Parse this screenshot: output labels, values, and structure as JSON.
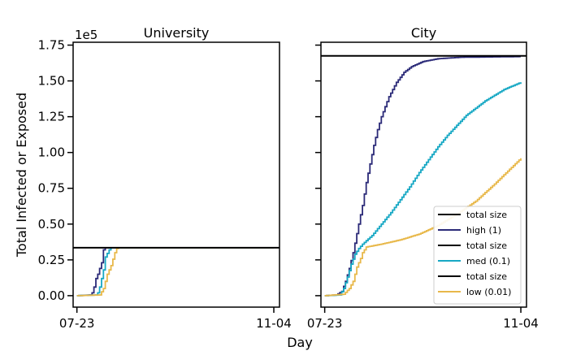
{
  "chart_data": {
    "type": "line",
    "ylabel": "Total Infected or Exposed",
    "xlabel": "Day",
    "y_scale_label": "1e5",
    "ylim": [
      -0.08,
      1.77
    ],
    "x_range_days": [
      -2,
      107
    ],
    "yticks": [
      {
        "value": 0.0,
        "label": "0.00"
      },
      {
        "value": 0.25,
        "label": "0.25"
      },
      {
        "value": 0.5,
        "label": "0.50"
      },
      {
        "value": 0.75,
        "label": "0.75"
      },
      {
        "value": 1.0,
        "label": "1.00"
      },
      {
        "value": 1.25,
        "label": "1.25"
      },
      {
        "value": 1.5,
        "label": "1.50"
      },
      {
        "value": 1.75,
        "label": "1.75"
      }
    ],
    "xticks": [
      {
        "day": 0,
        "label": "07-23"
      },
      {
        "day": 104,
        "label": "11-04"
      }
    ],
    "colors": {
      "high": "#2b2a78",
      "med": "#17a8c4",
      "low": "#e8b84a",
      "total": "#000000"
    },
    "legend": {
      "placement": "lower-right",
      "entries": [
        {
          "label": "total size",
          "color": "#000000"
        },
        {
          "label": "high (1)",
          "color": "#2b2a78"
        },
        {
          "label": "total size",
          "color": "#000000"
        },
        {
          "label": "med (0.1)",
          "color": "#17a8c4"
        },
        {
          "label": "total size",
          "color": "#000000"
        },
        {
          "label": "low (0.01)",
          "color": "#e8b84a"
        }
      ]
    },
    "panels": [
      {
        "title": "University",
        "total_size": 0.335,
        "series": [
          {
            "key": "high",
            "points": [
              [
                0,
                0
              ],
              [
                7,
                0.005
              ],
              [
                8,
                0.02
              ],
              [
                9,
                0.06
              ],
              [
                10,
                0.12
              ],
              [
                11,
                0.15
              ],
              [
                13,
                0.23
              ],
              [
                14,
                0.32
              ],
              [
                15,
                0.335
              ],
              [
                104,
                0.335
              ]
            ]
          },
          {
            "key": "med",
            "points": [
              [
                0,
                0
              ],
              [
                10,
                0.005
              ],
              [
                11,
                0.02
              ],
              [
                12,
                0.06
              ],
              [
                14,
                0.18
              ],
              [
                15,
                0.27
              ],
              [
                17,
                0.32
              ],
              [
                18,
                0.335
              ],
              [
                104,
                0.335
              ]
            ]
          },
          {
            "key": "low",
            "points": [
              [
                0,
                0
              ],
              [
                12,
                0.005
              ],
              [
                14,
                0.05
              ],
              [
                16,
                0.15
              ],
              [
                18,
                0.21
              ],
              [
                20,
                0.3
              ],
              [
                21,
                0.33
              ],
              [
                22,
                0.335
              ],
              [
                104,
                0.335
              ]
            ]
          }
        ]
      },
      {
        "title": "City",
        "total_size": 1.675,
        "series": [
          {
            "key": "high",
            "points": [
              [
                0,
                0
              ],
              [
                6,
                0.005
              ],
              [
                9,
                0.03
              ],
              [
                11,
                0.1
              ],
              [
                13,
                0.19
              ],
              [
                15,
                0.3
              ],
              [
                18,
                0.5
              ],
              [
                20,
                0.63
              ],
              [
                22,
                0.79
              ],
              [
                24,
                0.92
              ],
              [
                26,
                1.05
              ],
              [
                28,
                1.16
              ],
              [
                30,
                1.25
              ],
              [
                34,
                1.39
              ],
              [
                38,
                1.49
              ],
              [
                42,
                1.56
              ],
              [
                46,
                1.6
              ],
              [
                52,
                1.635
              ],
              [
                60,
                1.655
              ],
              [
                72,
                1.665
              ],
              [
                104,
                1.67
              ]
            ]
          },
          {
            "key": "med",
            "points": [
              [
                0,
                0
              ],
              [
                8,
                0.005
              ],
              [
                10,
                0.05
              ],
              [
                12,
                0.13
              ],
              [
                14,
                0.22
              ],
              [
                16,
                0.29
              ],
              [
                18,
                0.33
              ],
              [
                20,
                0.36
              ],
              [
                25,
                0.42
              ],
              [
                30,
                0.5
              ],
              [
                35,
                0.58
              ],
              [
                40,
                0.67
              ],
              [
                45,
                0.76
              ],
              [
                50,
                0.86
              ],
              [
                55,
                0.95
              ],
              [
                60,
                1.04
              ],
              [
                65,
                1.12
              ],
              [
                70,
                1.19
              ],
              [
                75,
                1.26
              ],
              [
                80,
                1.31
              ],
              [
                85,
                1.36
              ],
              [
                90,
                1.4
              ],
              [
                95,
                1.44
              ],
              [
                104,
                1.49
              ]
            ]
          },
          {
            "key": "low",
            "points": [
              [
                0,
                0
              ],
              [
                10,
                0.01
              ],
              [
                13,
                0.05
              ],
              [
                15,
                0.1
              ],
              [
                17,
                0.2
              ],
              [
                19,
                0.26
              ],
              [
                20,
                0.3
              ],
              [
                22,
                0.34
              ],
              [
                30,
                0.36
              ],
              [
                40,
                0.39
              ],
              [
                50,
                0.43
              ],
              [
                60,
                0.49
              ],
              [
                70,
                0.57
              ],
              [
                80,
                0.66
              ],
              [
                90,
                0.78
              ],
              [
                97,
                0.87
              ],
              [
                104,
                0.96
              ]
            ]
          }
        ]
      }
    ]
  }
}
